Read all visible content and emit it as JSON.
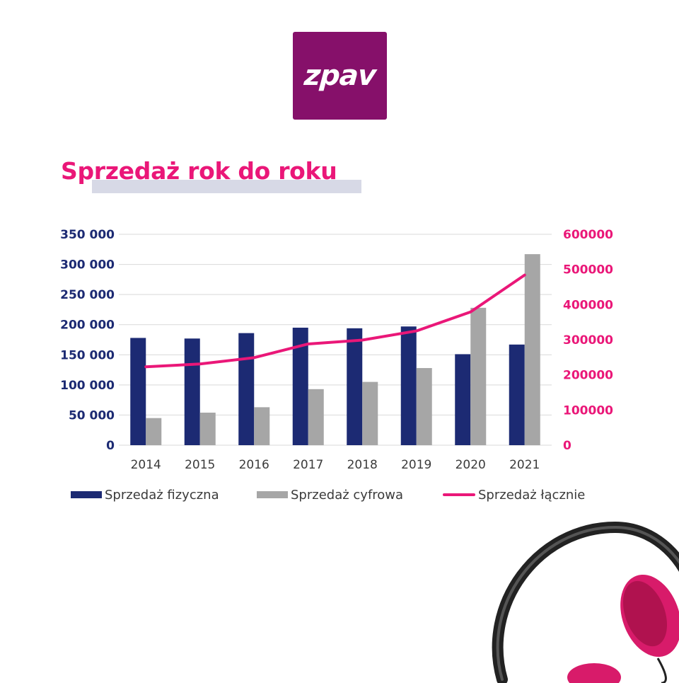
{
  "logo": {
    "text": "zpav"
  },
  "colors": {
    "physical": "#1c2a73",
    "digital": "#a6a6a6",
    "total": "#ea1778",
    "left_axis_text": "#1c2a73",
    "right_axis_text": "#ea1778",
    "grid": "#d9d9d9",
    "logo_bg": "#86106a"
  },
  "chart_data": {
    "type": "bar",
    "title": "Sprzedaż rok do roku",
    "categories": [
      "2014",
      "2015",
      "2016",
      "2017",
      "2018",
      "2019",
      "2020",
      "2021"
    ],
    "series": [
      {
        "name": "Sprzedaż fizyczna",
        "type": "bar",
        "axis": "left",
        "values": [
          178000,
          177000,
          186000,
          195000,
          194000,
          197000,
          151000,
          167000
        ]
      },
      {
        "name": "Sprzedaż cyfrowa",
        "type": "bar",
        "axis": "left",
        "values": [
          45000,
          54000,
          63000,
          93000,
          105000,
          128000,
          228000,
          317000
        ]
      },
      {
        "name": "Sprzedaż łącznie",
        "type": "line",
        "axis": "right",
        "values": [
          223000,
          231000,
          249000,
          288000,
          299000,
          325000,
          379000,
          484000
        ]
      }
    ],
    "y_left": {
      "range": [
        0,
        350000
      ],
      "ticks": [
        0,
        50000,
        100000,
        150000,
        200000,
        250000,
        300000,
        350000
      ],
      "tick_labels": [
        "0",
        "50 000",
        "100 000",
        "150 000",
        "200 000",
        "250 000",
        "300 000",
        "350 000"
      ]
    },
    "y_right": {
      "range": [
        0,
        600000
      ],
      "ticks": [
        0,
        100000,
        200000,
        300000,
        400000,
        500000,
        600000
      ],
      "tick_labels": [
        "0",
        "100000",
        "200000",
        "300000",
        "400000",
        "500000",
        "600000"
      ]
    },
    "grid": true,
    "legend_position": "bottom"
  }
}
